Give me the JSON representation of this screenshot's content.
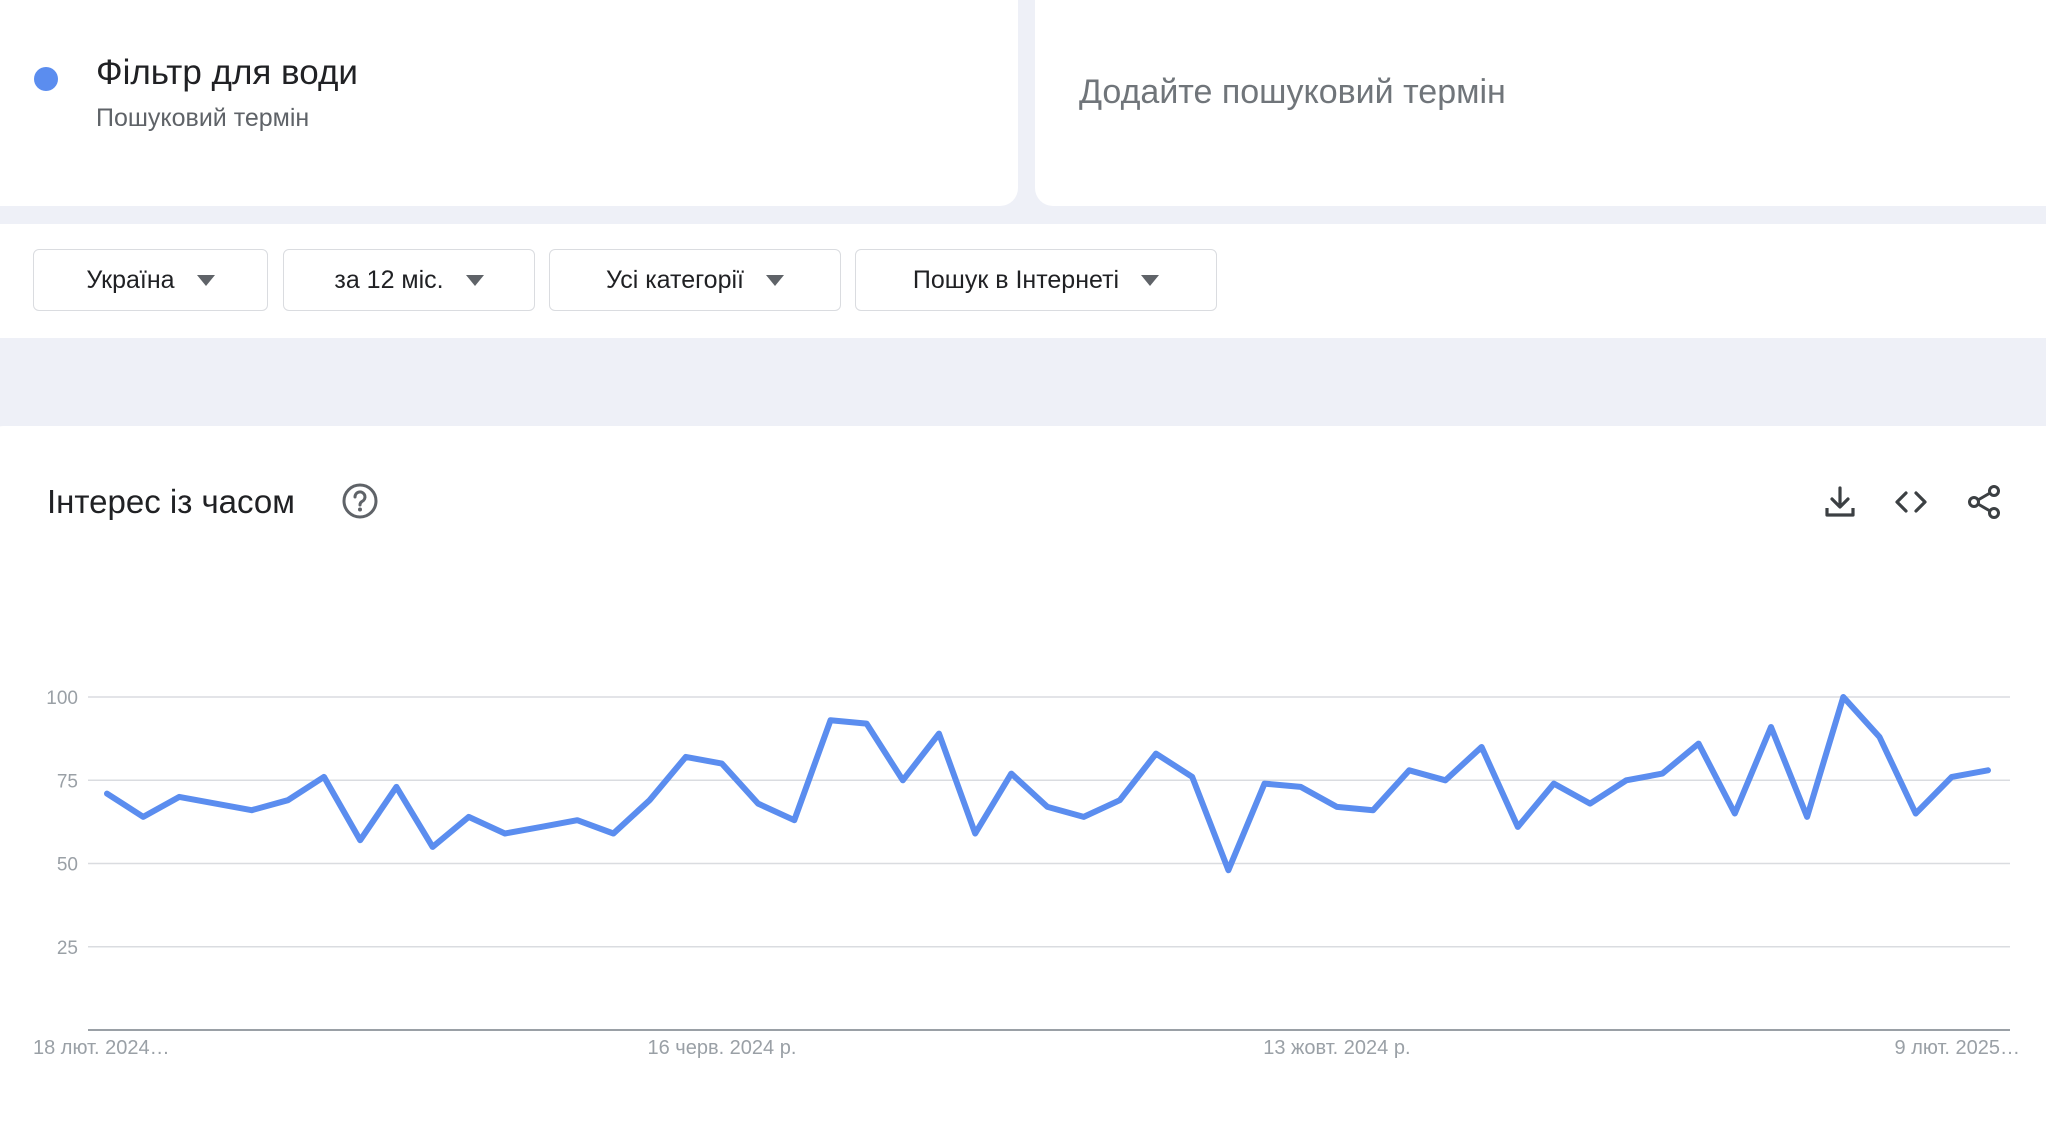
{
  "search_terms": {
    "term1": {
      "name": "Фільтр для води",
      "type": "Пошуковий термін",
      "color": "#5b8def"
    },
    "add_placeholder": "Додайте пошуковий термін"
  },
  "filters": {
    "region": "Україна",
    "period": "за 12 міс.",
    "category": "Усі категорії",
    "search_type": "Пошук в Інтернеті"
  },
  "chart_panel": {
    "title": "Інтерес із часом",
    "icons": [
      "help-icon",
      "download-icon",
      "embed-code-icon",
      "share-icon"
    ]
  },
  "chart_data": {
    "type": "line",
    "title": "Інтерес із часом",
    "xlabel": "",
    "ylabel": "",
    "ylim": [
      0,
      100
    ],
    "yticks": [
      25,
      50,
      75,
      100
    ],
    "grid": true,
    "line_color": "#5b8def",
    "x_tick_labels": [
      "18 лют. 2024…",
      "16 черв. 2024 р.",
      "13 жовт. 2024 р.",
      "9 лют. 2025…"
    ],
    "x_tick_indices": [
      0,
      17,
      34,
      51
    ],
    "series": [
      {
        "values": [
          71,
          64,
          70,
          68,
          66,
          69,
          76,
          57,
          73,
          55,
          64,
          59,
          61,
          63,
          59,
          69,
          82,
          80,
          68,
          63,
          93,
          92,
          75,
          89,
          59,
          77,
          67,
          64,
          69,
          83,
          76,
          48,
          74,
          73,
          67,
          66,
          78,
          75,
          85,
          61,
          74,
          68,
          75,
          77,
          86,
          65,
          91,
          64,
          100,
          88,
          65,
          76,
          78
        ]
      }
    ]
  }
}
